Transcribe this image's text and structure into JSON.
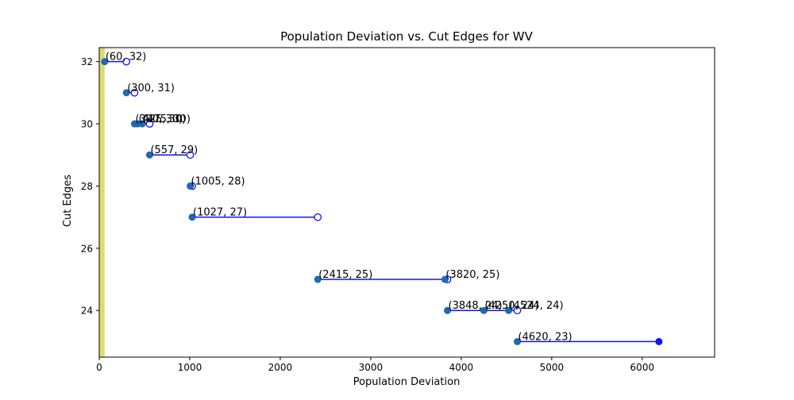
{
  "chart_data": {
    "type": "scatter",
    "title": "Population Deviation vs. Cut Edges for WV",
    "xlabel": "Population Deviation",
    "ylabel": "Cut Edges",
    "xlim": [
      0,
      6800
    ],
    "ylim": [
      22.5,
      32.45
    ],
    "x_ticks": [
      0,
      1000,
      2000,
      3000,
      4000,
      5000,
      6000
    ],
    "y_ticks": [
      24,
      26,
      28,
      30,
      32
    ],
    "grid": false,
    "legend": "none",
    "highlight_band": {
      "x_from": 0,
      "x_to": 60,
      "color": "#d8d55a"
    },
    "point_color": "#1f68b8",
    "segment_color": "#1010ff",
    "points": [
      {
        "x": 60,
        "y": 32,
        "label": "(60, 32)"
      },
      {
        "x": 300,
        "y": 31,
        "label": "(300, 31)"
      },
      {
        "x": 390,
        "y": 30,
        "label": "(390, 30)"
      },
      {
        "x": 425,
        "y": 30,
        "label": "(425, 30)"
      },
      {
        "x": 475,
        "y": 30,
        "label": "(475, 30)"
      },
      {
        "x": 557,
        "y": 29,
        "label": "(557, 29)"
      },
      {
        "x": 1005,
        "y": 28,
        "label": "(1005, 28)"
      },
      {
        "x": 1027,
        "y": 27,
        "label": "(1027, 27)"
      },
      {
        "x": 2415,
        "y": 25,
        "label": "(2415, 25)"
      },
      {
        "x": 3820,
        "y": 25,
        "label": "(3820, 25)"
      },
      {
        "x": 3848,
        "y": 24,
        "label": "(3848, 24)"
      },
      {
        "x": 4250,
        "y": 24,
        "label": "(4250, 24)"
      },
      {
        "x": 4524,
        "y": 24,
        "label": "(4524, 24)"
      },
      {
        "x": 4620,
        "y": 23,
        "label": "(4620, 23)"
      }
    ],
    "segments": [
      {
        "x_start": 60,
        "x_end": 300,
        "y": 32,
        "end": "open"
      },
      {
        "x_start": 300,
        "x_end": 390,
        "y": 31,
        "end": "open"
      },
      {
        "x_start": 390,
        "x_end": 557,
        "y": 30,
        "end": "open"
      },
      {
        "x_start": 557,
        "x_end": 1005,
        "y": 29,
        "end": "open"
      },
      {
        "x_start": 1005,
        "x_end": 1027,
        "y": 28,
        "end": "open"
      },
      {
        "x_start": 1027,
        "x_end": 2415,
        "y": 27,
        "end": "open"
      },
      {
        "x_start": 2415,
        "x_end": 3848,
        "y": 25,
        "end": "open"
      },
      {
        "x_start": 3848,
        "x_end": 4620,
        "y": 24,
        "end": "open"
      },
      {
        "x_start": 4620,
        "x_end": 6185,
        "y": 23,
        "end": "closed"
      }
    ]
  }
}
